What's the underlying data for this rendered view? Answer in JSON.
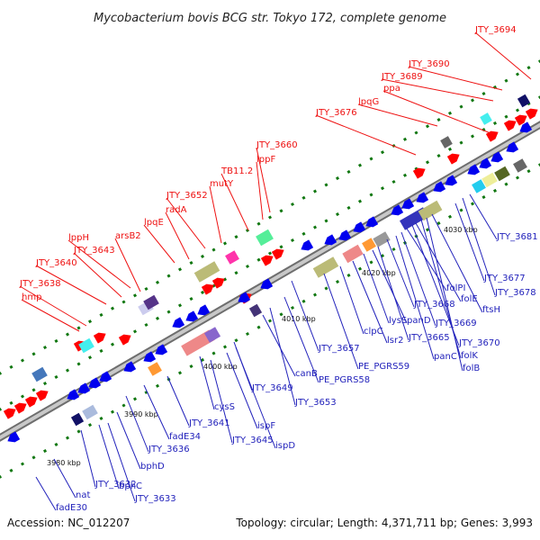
{
  "title": "Mycobacterium bovis BCG str. Tokyo 172, complete genome",
  "footer": {
    "accession": "Accession: NC_012207",
    "topology": "Topology: circular; Length: 4,371,711 bp; Genes: 3,993"
  },
  "colors": {
    "plus_label": "#ee1111",
    "minus_label": "#2222bb",
    "plus_gene": "#ff0000",
    "minus_gene": "#0000ee",
    "backbone": "#999999",
    "gc_dots": "#117711"
  },
  "tick_labels": [
    "3980 kbp",
    "3990 kbp",
    "4000 kbp",
    "4010 kbp",
    "4020 kbp",
    "4030 kbp"
  ],
  "labels_plus": [
    "JTY_3694",
    "JTY_3690",
    "JTY_3689",
    "ppa",
    "lpqG",
    "JTY_3676",
    "JTY_3660",
    "lppF",
    "TB11.2",
    "mutY",
    "JTY_3652",
    "radA",
    "lpqE",
    "arsB2",
    "lppH",
    "JTY_3643",
    "JTY_3640",
    "JTY_3638",
    "hmp"
  ],
  "labels_minus": [
    "fadE30",
    "nat",
    "JTY_3632",
    "bphC",
    "JTY_3633",
    "bphD",
    "JTY_3636",
    "fadE34",
    "JTY_3641",
    "JTY_3645",
    "cysS",
    "ispF",
    "ispD",
    "JTY_3649",
    "canB",
    "JTY_3653",
    "PE_PGRS58",
    "JTY_3657",
    "PE_PGRS59",
    "clpC",
    "lsr2",
    "lysS",
    "panD",
    "JTY_3665",
    "JTY_3668",
    "panC",
    "JTY_3669",
    "folPI",
    "JTY_3670",
    "folE",
    "folK",
    "ftsH",
    "folB",
    "JTY_3677",
    "JTY_3678",
    "JTY_3681"
  ]
}
